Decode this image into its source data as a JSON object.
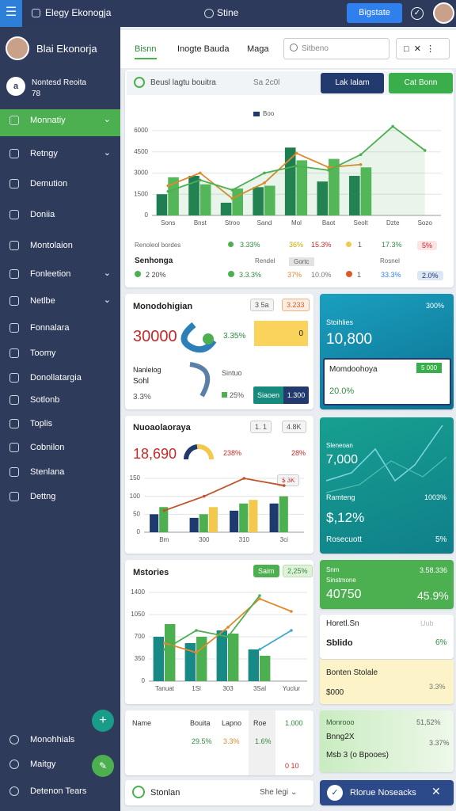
{
  "topbar": {
    "brand": "Elegy Ekonogja",
    "center": "Stine",
    "button": "Bigstate"
  },
  "sidebar": {
    "user": "Blai Ekonorja",
    "account": "Nontesd Reoita",
    "account_sub": "78",
    "items": [
      "Monnatiy",
      "Retngy",
      "Demution",
      "Doniia",
      "Montolaion",
      "Fonleetion",
      "Netlbe",
      "Fonnalara",
      "Toomy",
      "Donollatargia",
      "Sotlonb",
      "Toplis",
      "Cobnilon",
      "Stenlana",
      "Dettng"
    ],
    "footer": [
      "Monohhials",
      "Maitgy",
      "Detenon Tears"
    ]
  },
  "tabs": [
    "Bisnn",
    "Inogte Bauda",
    "Maga"
  ],
  "search": "Sitbeno",
  "main": {
    "header": "Beusl lagtu bouitra",
    "date": "Sa 2c0l",
    "buttons": [
      "Lak Ialam",
      "Cat Bonn"
    ],
    "chart_data": {
      "type": "bar",
      "categories": [
        "Sons",
        "Bnst",
        "Stroo",
        "Sand",
        "Mol",
        "Baot",
        "Seolt",
        "Dzte",
        "Sozo"
      ],
      "ylim": [
        0,
        6500
      ],
      "yticks": [
        0,
        1500,
        3000,
        4500,
        6000
      ],
      "grid": true,
      "series": [
        {
          "name": "Boo",
          "color": "#1e7d52",
          "values": [
            1500,
            2800,
            900,
            2000,
            4800,
            2400,
            2800,
            null,
            null
          ]
        },
        {
          "color": "#55b85a",
          "values": [
            2700,
            2200,
            1900,
            2100,
            3900,
            4000,
            3400,
            null,
            null
          ]
        },
        {
          "type": "line",
          "color": "#e0892c",
          "values": [
            2100,
            3000,
            1200,
            2300,
            4400,
            3400,
            3600,
            null,
            null
          ]
        },
        {
          "type": "line",
          "area": true,
          "color": "#4caf50",
          "values": [
            1700,
            2500,
            1800,
            3000,
            3500,
            3200,
            4300,
            6300,
            4600
          ]
        }
      ]
    },
    "stats": {
      "title": "Renoleol bordes",
      "label": "Senhonga",
      "row1": [
        "3.33%",
        "36%",
        "15.3%",
        "1",
        "17.3%",
        "5%"
      ],
      "middle": [
        "Rendel",
        "Gortc",
        "Rosnel"
      ],
      "row2": [
        "2 20%",
        "3.3.3%",
        "37%",
        "10.0%",
        "1",
        "33.3%",
        "2.0%"
      ]
    }
  },
  "card2": {
    "title": "Monodohigian",
    "big": "30000",
    "pct": "3.35%",
    "chips": [
      "3 5a",
      "3.233"
    ],
    "bar": "0",
    "sub1": "Nanlelog",
    "sub2": "Sohl",
    "side": "Sintuo",
    "small": "3.3%",
    "small2": "25%",
    "buttons": [
      "Siaoen",
      "1.300"
    ]
  },
  "teal1": {
    "title": "Stoihlies",
    "pct": "300%",
    "big": "10,800",
    "box_title": "Momdoohoya",
    "box_chip": "5 000",
    "box_pct": "20.0%"
  },
  "card3": {
    "title": "Nuoaolaoraya",
    "chips": [
      "1. 1",
      "4.8K"
    ],
    "big": "18,690",
    "pct": "238%",
    "pct2": "28%",
    "tag": "$ 3K",
    "chart_data": {
      "type": "bar",
      "categories": [
        "Bm",
        "300",
        "310",
        "3ci"
      ],
      "ylim": [
        0,
        150
      ],
      "yticks": [
        0,
        50,
        100,
        150
      ],
      "grid": true,
      "series": [
        {
          "color": "#1f3a6e",
          "values": [
            50,
            40,
            60,
            80
          ]
        },
        {
          "color": "#4caf50",
          "values": [
            70,
            50,
            80,
            100
          ]
        },
        {
          "color": "#f2c94c",
          "values": [
            null,
            70,
            90,
            null
          ]
        },
        {
          "type": "line",
          "color": "#c0542a",
          "values": [
            60,
            100,
            150,
            130
          ]
        }
      ]
    }
  },
  "teal2": {
    "title": "Sleneoan",
    "big": "7,000",
    "label": "Ramteng",
    "pct": "1003%",
    "big2": "$,12%",
    "foot": "Rosecuott",
    "foot_pct": "5%"
  },
  "card4": {
    "title": "Mstories",
    "chips": [
      "Saim",
      "2,25%"
    ],
    "chart_data": {
      "type": "bar",
      "categories": [
        "Tanuat",
        "1Sl",
        "303",
        "3Sal",
        "Yuclur"
      ],
      "ylim": [
        0,
        1400
      ],
      "yticks": [
        0,
        350,
        700,
        1050,
        1400
      ],
      "grid": true,
      "series": [
        {
          "color": "#178a86",
          "values": [
            700,
            600,
            800,
            500,
            null
          ]
        },
        {
          "color": "#4caf50",
          "values": [
            900,
            700,
            750,
            400,
            null
          ]
        },
        {
          "type": "line",
          "color": "#e0892c",
          "values": [
            600,
            450,
            850,
            1300,
            1100
          ]
        },
        {
          "type": "line",
          "color": "#4caf50",
          "values": [
            500,
            800,
            700,
            1350,
            null
          ]
        },
        {
          "type": "line",
          "color": "#40a8c8",
          "values": [
            null,
            null,
            null,
            500,
            800
          ]
        }
      ]
    }
  },
  "green": {
    "a": "Snm",
    "b": "Sinstmone",
    "c": "3.58.336",
    "big": "40750",
    "pct": "45.9%"
  },
  "white": {
    "title": "Horetl.Sn",
    "sub": "Sblido",
    "pct": "6%",
    "tag": "Uub"
  },
  "yellow": {
    "title": "Bonten Stolale",
    "val": "$000",
    "pct": "3.3%"
  },
  "table": {
    "headers": [
      "Name",
      "Bouita",
      "Lapno",
      "Roe",
      "1.000"
    ],
    "values": [
      "29.5%",
      "3.3%",
      "1.6%",
      "0 10"
    ]
  },
  "lightgreen": {
    "title": "Monrooo",
    "val": "51,52%",
    "sub": "Bnng2X",
    "pct": "3.37%",
    "foot": "Msb 3 (o Bpooes)"
  },
  "bottom": {
    "left": "Stonlan",
    "right": "She legi",
    "notice": "Rlorue Noseacks"
  }
}
